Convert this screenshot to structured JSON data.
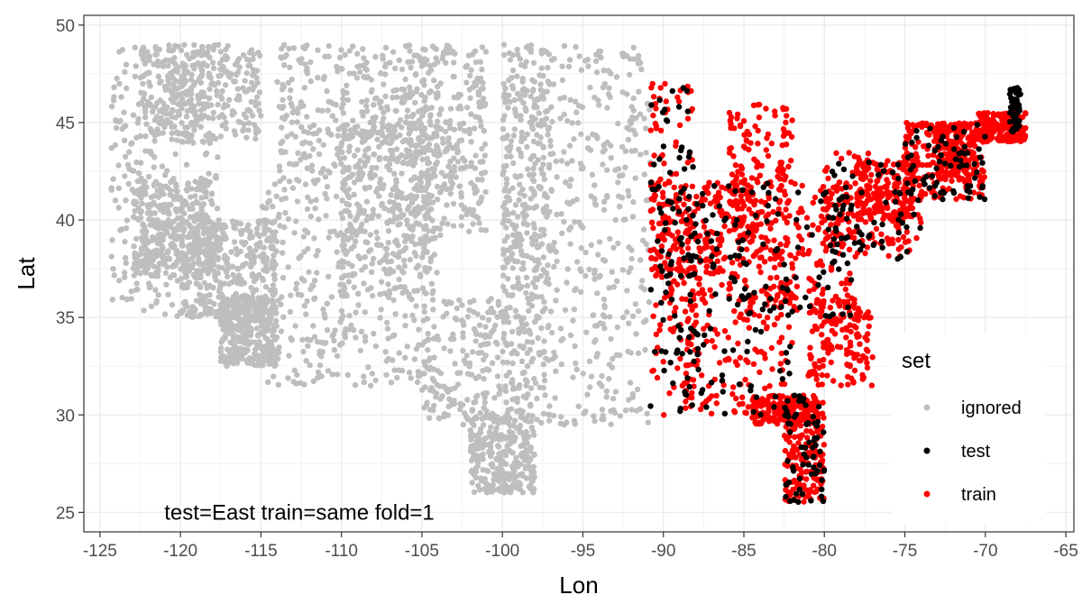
{
  "chart_data": {
    "type": "scatter",
    "xlabel": "Lon",
    "ylabel": "Lat",
    "xlim": [
      -126,
      -64.5
    ],
    "ylim": [
      24,
      50.5
    ],
    "x_ticks": [
      -125,
      -120,
      -115,
      -110,
      -105,
      -100,
      -95,
      -90,
      -85,
      -80,
      -75,
      -70,
      -65
    ],
    "y_ticks": [
      25,
      30,
      35,
      40,
      45,
      50
    ],
    "grid": true,
    "annotation": {
      "text": "test=East train=same fold=1",
      "x": -121,
      "y": 25
    },
    "legend": {
      "title": "set",
      "placement": "bottom-right",
      "entries": [
        {
          "label": "ignored",
          "color": "#bebebe"
        },
        {
          "label": "test",
          "color": "#000000"
        },
        {
          "label": "train",
          "color": "#ff0000"
        }
      ]
    },
    "split_lon": -90.8,
    "series": [
      {
        "name": "ignored",
        "color": "#bebebe",
        "regions": [
          [
            -124.3,
            -117.5,
            35,
            49
          ],
          [
            -123,
            -118,
            37,
            42
          ],
          [
            -122.5,
            -115,
            44,
            49
          ],
          [
            -120,
            -114,
            35,
            40
          ],
          [
            -117.5,
            -114,
            32.5,
            36
          ],
          [
            -115,
            -105,
            31.5,
            42
          ],
          [
            -114,
            -104,
            42,
            49
          ],
          [
            -110,
            -104,
            36,
            45
          ],
          [
            -106,
            -101,
            39,
            49
          ],
          [
            -105,
            -97,
            29.5,
            36
          ],
          [
            -102,
            -98,
            26,
            30
          ],
          [
            -100,
            -97,
            36,
            49
          ],
          [
            -97,
            -90.8,
            29.5,
            49
          ]
        ],
        "count": 4200
      },
      {
        "name": "train",
        "color": "#ff0000",
        "regions": [
          [
            -90.8,
            -85,
            37,
            42
          ],
          [
            -90.8,
            -88,
            30,
            47
          ],
          [
            -89,
            -82,
            30,
            37
          ],
          [
            -86,
            -82,
            38,
            46
          ],
          [
            -85,
            -78,
            35,
            42
          ],
          [
            -82.5,
            -80,
            25.5,
            31
          ],
          [
            -84.5,
            -80.5,
            29.5,
            31
          ],
          [
            -81,
            -77,
            31.5,
            36
          ],
          [
            -80,
            -74,
            38,
            43.5
          ],
          [
            -78,
            -74.5,
            40,
            43
          ],
          [
            -75,
            -70,
            41,
            45
          ],
          [
            -73,
            -70.5,
            42,
            45
          ],
          [
            -70.5,
            -67.5,
            44,
            45.5
          ]
        ],
        "count": 2200
      },
      {
        "name": "test",
        "color": "#000000",
        "regions": [
          [
            -90.8,
            -85,
            37,
            42
          ],
          [
            -90.8,
            -88,
            30,
            47
          ],
          [
            -89,
            -82,
            30,
            37
          ],
          [
            -85,
            -78,
            35,
            42
          ],
          [
            -82.5,
            -80,
            25.5,
            31
          ],
          [
            -80,
            -74,
            38,
            43
          ],
          [
            -75,
            -70,
            41,
            45
          ],
          [
            -68.5,
            -67.8,
            44.5,
            47
          ]
        ],
        "count": 500
      }
    ]
  }
}
